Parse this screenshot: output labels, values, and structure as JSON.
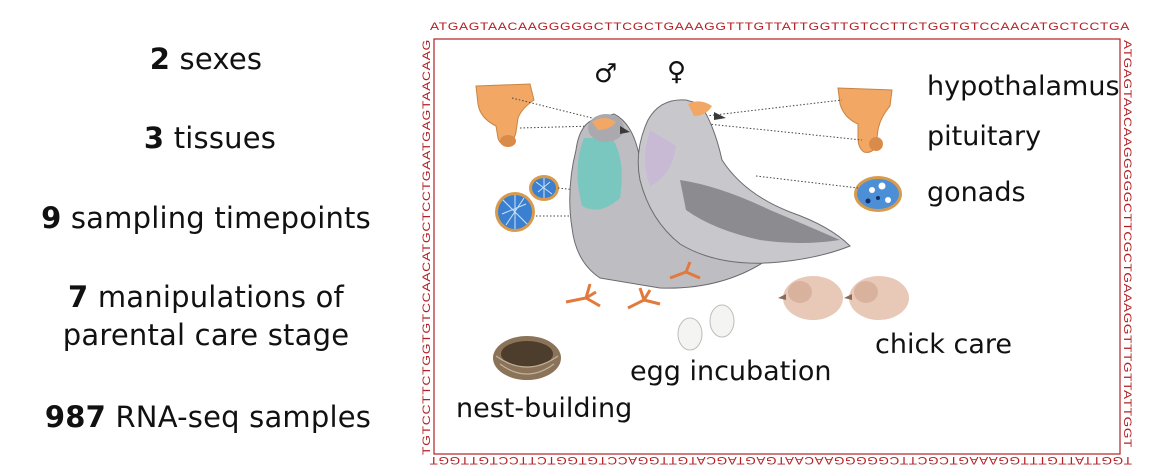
{
  "stats": [
    {
      "number": "2",
      "text": " sexes"
    },
    {
      "number": "3",
      "text": " tissues"
    },
    {
      "number": "9",
      "text": " sampling timepoints"
    },
    {
      "number": "7",
      "text": " manipulations of",
      "line2": "parental care stage"
    },
    {
      "number": "987",
      "text": " RNA-seq samples"
    }
  ],
  "dna": {
    "top": "ATGAGTAACAAGGGGGCTTCGCTGAAAGGTTTGTTATTGGTTGTCCTTCTGGTGTCCAACATGCTCCTGA",
    "right": "ATGAGTAACAAGGGGGCTTCGCTGAAAGGTTTGTTATTGGT",
    "bottom": "TGGTTATTGTTTGGAAAGTCGCTTCGGGGGAACAATGAGTAGCATGTTGGACCTGTGGTCTTCCTGTTGGT",
    "left": "TGTCCTTCTGGTGTCCAACATGCTCCTGAATGAGTAACAAG"
  },
  "symbols": {
    "male": "♂",
    "female": "♀"
  },
  "tissue_labels": {
    "hypothalamus": "hypothalamus",
    "pituitary": "pituitary",
    "gonads": "gonads"
  },
  "stage_labels": {
    "nest": "nest-building",
    "egg": "egg incubation",
    "chick": "chick care"
  },
  "colors": {
    "dna_text": "#b32024",
    "border": "#b32024",
    "brain_tissue": "#f0a866",
    "gonad_blue": "#3b7fd0",
    "pigeon_gray": "#b8b8bc"
  }
}
